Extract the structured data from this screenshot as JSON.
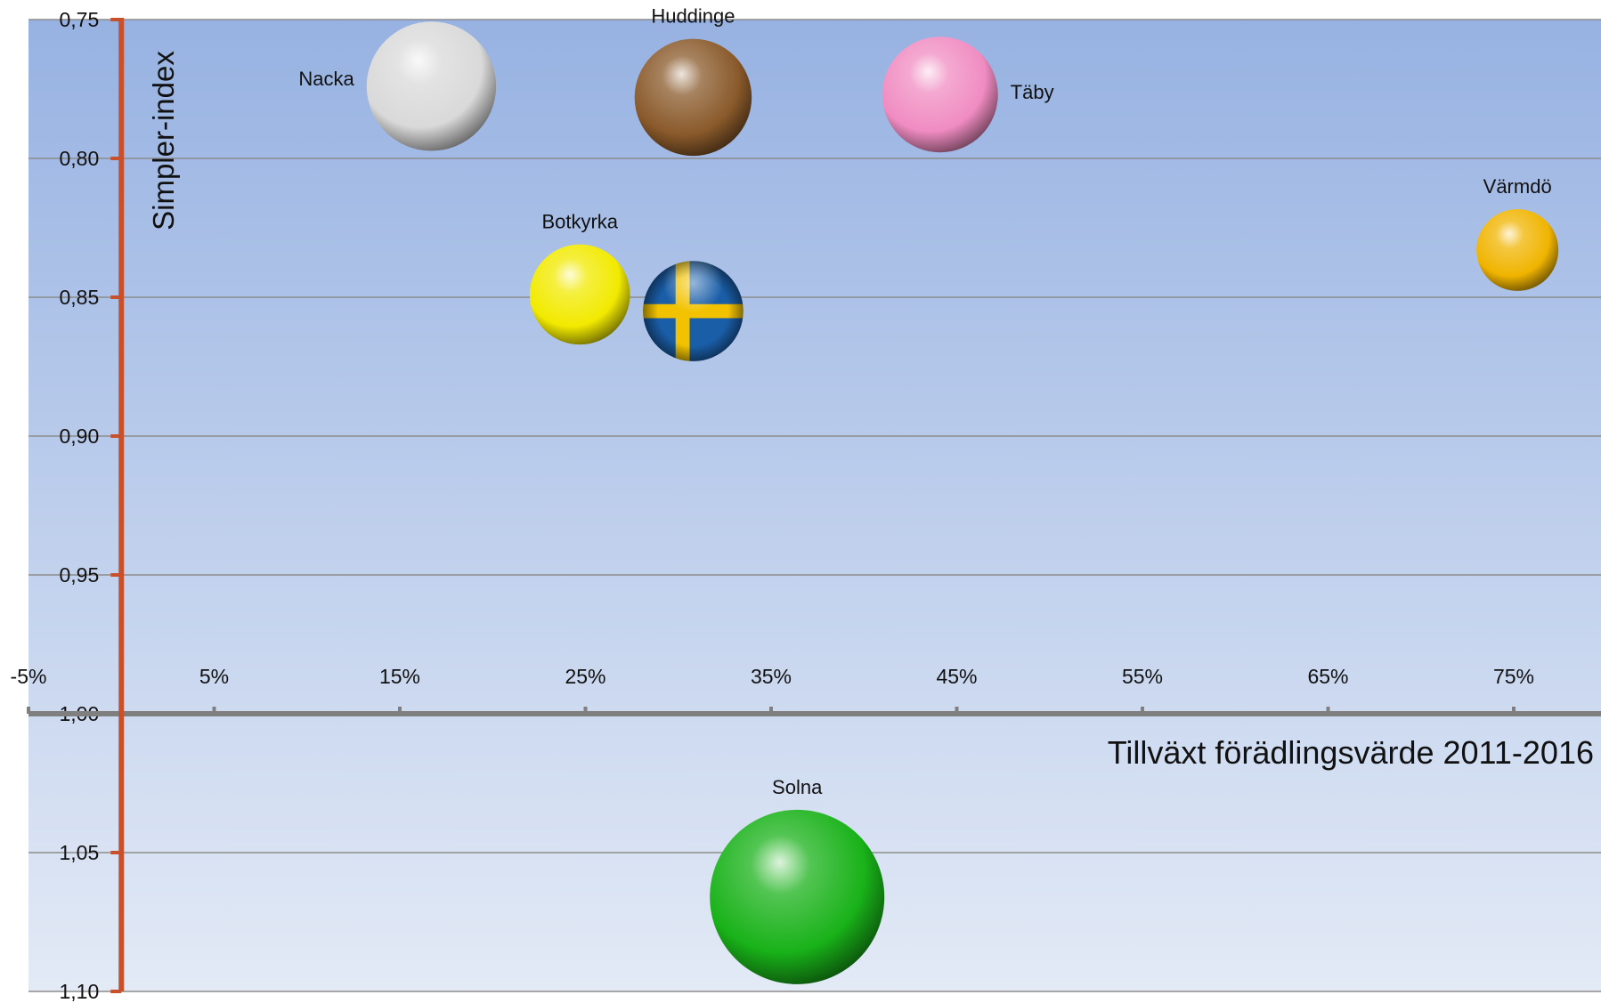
{
  "chart_data": {
    "type": "bubble",
    "xlabel": "Tillväxt förädlingsvärde 2011-2016",
    "ylabel": "Simpler-index",
    "xlim": [
      -0.05,
      0.8
    ],
    "ylim": [
      0.75,
      1.1
    ],
    "y_axis_reversed": true,
    "x_axis_crosses_at": 1.0,
    "y_axis_crosses_at": 0.0,
    "x_ticks": [
      -0.05,
      0.05,
      0.15,
      0.25,
      0.35,
      0.45,
      0.55,
      0.65,
      0.75
    ],
    "x_tick_labels": [
      "-5%",
      "5%",
      "15%",
      "25%",
      "35%",
      "45%",
      "55%",
      "65%",
      "75%"
    ],
    "y_ticks": [
      0.75,
      0.8,
      0.85,
      0.9,
      0.95,
      1.0,
      1.05,
      1.1
    ],
    "y_tick_labels": [
      "0,75",
      "0,80",
      "0,85",
      "0,90",
      "0,95",
      "1,00",
      "1,05",
      "1,10"
    ],
    "grid": true,
    "legend": "none",
    "colors": {
      "background_top": "#97b2e2",
      "background_bottom": "#e3eaf6",
      "y_axis": "#c8502a",
      "x_axis": "#7f7f7f",
      "gridline": "#8c8c8c"
    },
    "points": [
      {
        "label": "Nacka",
        "x": 0.167,
        "y": 0.774,
        "size": 0.55,
        "color": "#d9d9d9",
        "label_pos": "left"
      },
      {
        "label": "Huddinge",
        "x": 0.308,
        "y": 0.778,
        "size": 0.45,
        "color": "#8a5a2b",
        "label_pos": "top"
      },
      {
        "label": "Täby",
        "x": 0.441,
        "y": 0.777,
        "size": 0.44,
        "color": "#f08cc2",
        "label_pos": "right"
      },
      {
        "label": "Värmdö",
        "x": 0.752,
        "y": 0.833,
        "size": 0.22,
        "color": "#f0b400",
        "label_pos": "top"
      },
      {
        "label": "Botkyrka",
        "x": 0.247,
        "y": 0.849,
        "size": 0.33,
        "color": "#f2ea00",
        "label_pos": "top"
      },
      {
        "label": "",
        "x": 0.308,
        "y": 0.855,
        "size": 0.33,
        "color": "flag-se",
        "label_pos": "none"
      },
      {
        "label": "Solna",
        "x": 0.364,
        "y": 1.066,
        "size": 1.0,
        "color": "#19b219",
        "label_pos": "top"
      }
    ]
  }
}
